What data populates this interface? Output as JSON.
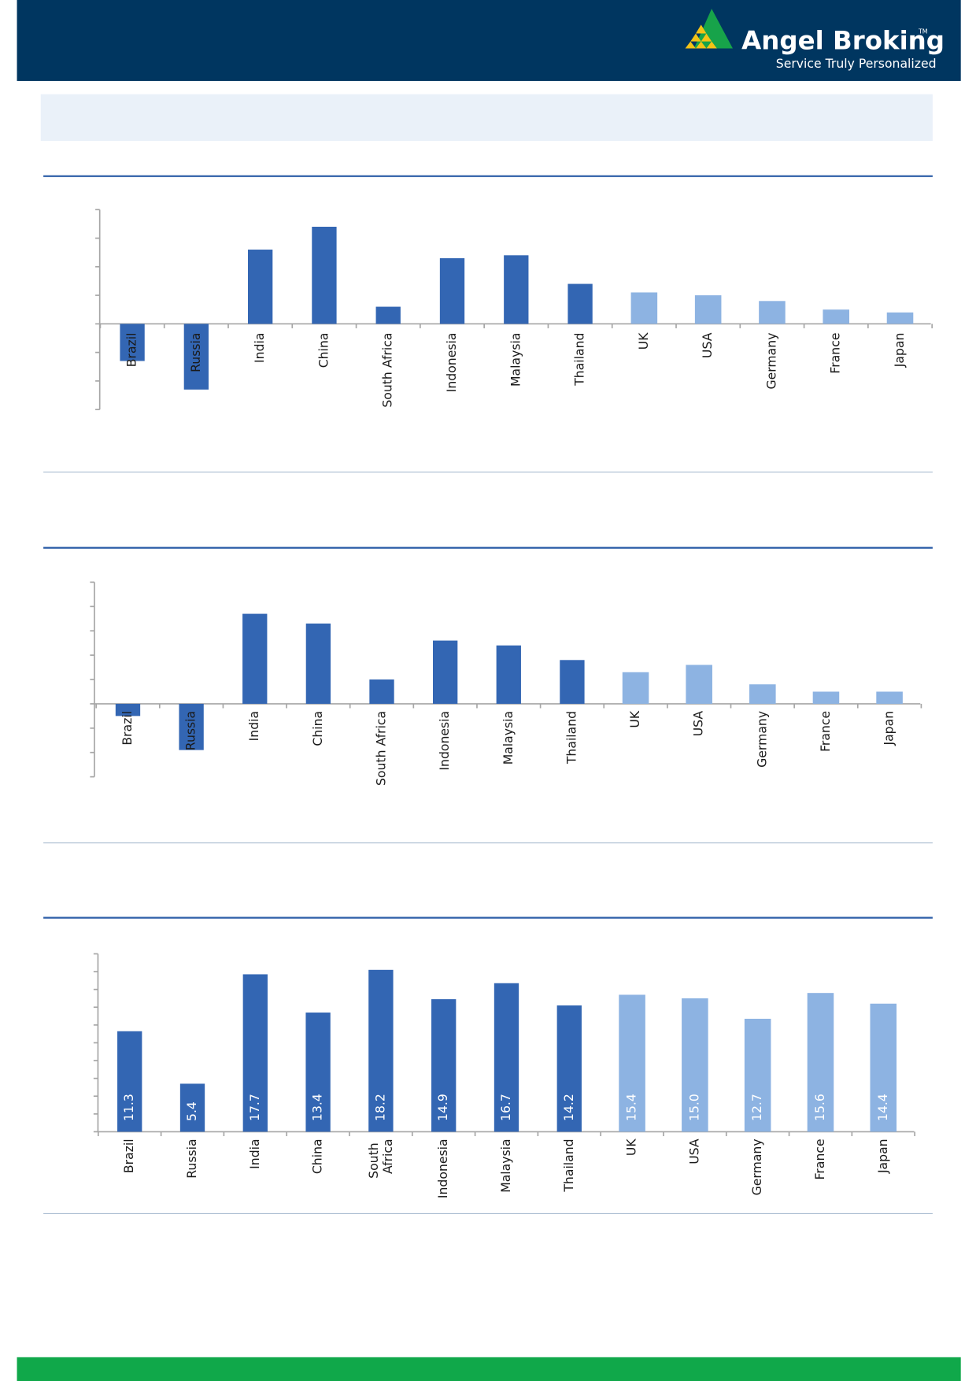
{
  "header": {
    "brand": "Angel Broking",
    "tm": "TM",
    "tagline": "Service Truly Personalized"
  },
  "chart_data": [
    {
      "type": "bar",
      "categories": [
        "Brazil",
        "Russia",
        "India",
        "China",
        "South Africa",
        "Indonesia",
        "Malaysia",
        "Thailand",
        "UK",
        "USA",
        "Germany",
        "France",
        "Japan"
      ],
      "values": [
        -1.3,
        -2.3,
        2.6,
        3.4,
        0.6,
        2.3,
        2.4,
        1.4,
        1.1,
        1.0,
        0.8,
        0.5,
        0.4
      ],
      "colors": [
        "#3366b3",
        "#3366b3",
        "#3366b3",
        "#3366b3",
        "#3366b3",
        "#3366b3",
        "#3366b3",
        "#3366b3",
        "#8db3e2",
        "#8db3e2",
        "#8db3e2",
        "#8db3e2",
        "#8db3e2"
      ],
      "ylim": [
        -3,
        4
      ],
      "yticks": [
        -3,
        -2,
        -1,
        0,
        1,
        2,
        3,
        4
      ]
    },
    {
      "type": "bar",
      "categories": [
        "Brazil",
        "Russia",
        "India",
        "China",
        "South Africa",
        "Indonesia",
        "Malaysia",
        "Thailand",
        "UK",
        "USA",
        "Germany",
        "France",
        "Japan"
      ],
      "values": [
        -0.5,
        -1.9,
        3.7,
        3.3,
        1.0,
        2.6,
        2.4,
        1.8,
        1.3,
        1.6,
        0.8,
        0.5,
        0.5
      ],
      "colors": [
        "#3366b3",
        "#3366b3",
        "#3366b3",
        "#3366b3",
        "#3366b3",
        "#3366b3",
        "#3366b3",
        "#3366b3",
        "#8db3e2",
        "#8db3e2",
        "#8db3e2",
        "#8db3e2",
        "#8db3e2"
      ],
      "ylim": [
        -3,
        5
      ],
      "yticks": [
        -3,
        -2,
        -1,
        0,
        1,
        2,
        3,
        4,
        5
      ]
    },
    {
      "type": "bar",
      "categories": [
        "Brazil",
        "Russia",
        "India",
        "China",
        "South Africa",
        "Indonesia",
        "Malaysia",
        "Thailand",
        "UK",
        "USA",
        "Germany",
        "France",
        "Japan"
      ],
      "values": [
        11.3,
        5.4,
        17.7,
        13.4,
        18.2,
        14.9,
        16.7,
        14.2,
        15.4,
        15.0,
        12.7,
        15.6,
        14.4
      ],
      "value_labels": [
        "11.3",
        "5.4",
        "17.7",
        "13.4",
        "18.2",
        "14.9",
        "16.7",
        "14.2",
        "15.4",
        "15.0",
        "12.7",
        "15.6",
        "14.4"
      ],
      "colors": [
        "#3366b3",
        "#3366b3",
        "#3366b3",
        "#3366b3",
        "#3366b3",
        "#3366b3",
        "#3366b3",
        "#3366b3",
        "#8db3e2",
        "#8db3e2",
        "#8db3e2",
        "#8db3e2",
        "#8db3e2"
      ],
      "ylim": [
        0,
        20
      ],
      "yticks": [
        0,
        2,
        4,
        6,
        8,
        10,
        12,
        14,
        16,
        18,
        20
      ]
    }
  ]
}
